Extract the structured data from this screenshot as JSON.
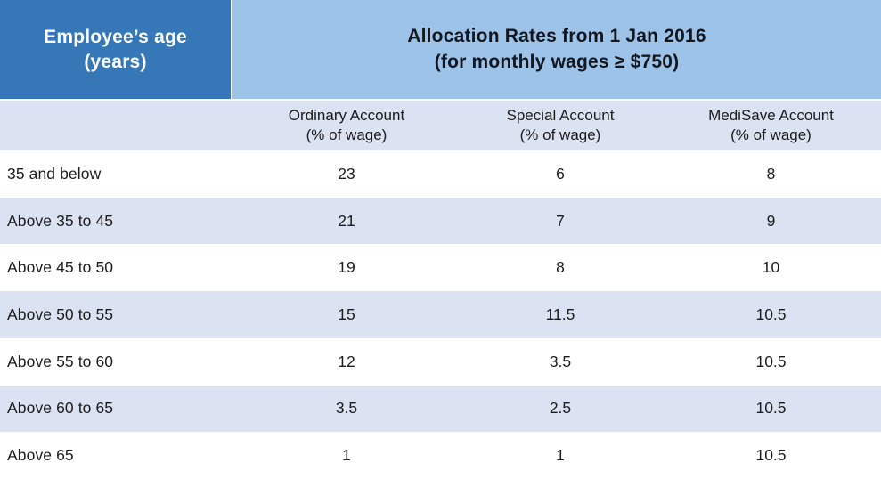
{
  "colors": {
    "header_dark_blue": "#3577b7",
    "header_light_blue": "#9dc4e8",
    "stripe_lavender": "#dbe2f2",
    "row_white": "#ffffff",
    "title_text": "#12161f",
    "header_text_on_dark": "#ffffff",
    "body_text": "#1c1c1c"
  },
  "table": {
    "corner": {
      "line1": "Employee’s age",
      "line2": "(years)"
    },
    "title": {
      "line1": "Allocation Rates from 1 Jan 2016",
      "line2": "(for monthly wages ≥ $750)"
    },
    "column_headers": [
      {
        "name": "Ordinary Account",
        "unit": "(% of wage)"
      },
      {
        "name": "Special Account",
        "unit": "(% of wage)"
      },
      {
        "name": "MediSave Account",
        "unit": "(% of wage)"
      }
    ],
    "rows": [
      {
        "age": "35 and below",
        "ordinary": "23",
        "special": "6",
        "medisave": "8"
      },
      {
        "age": "Above 35 to 45",
        "ordinary": "21",
        "special": "7",
        "medisave": "9"
      },
      {
        "age": "Above 45 to 50",
        "ordinary": "19",
        "special": "8",
        "medisave": "10"
      },
      {
        "age": "Above 50 to 55",
        "ordinary": "15",
        "special": "11.5",
        "medisave": "10.5"
      },
      {
        "age": "Above 55 to 60",
        "ordinary": "12",
        "special": "3.5",
        "medisave": "10.5"
      },
      {
        "age": "Above 60 to 65",
        "ordinary": "3.5",
        "special": "2.5",
        "medisave": "10.5"
      },
      {
        "age": "Above 65",
        "ordinary": "1",
        "special": "1",
        "medisave": "10.5"
      }
    ]
  },
  "chart_data": {
    "type": "table",
    "title": "Allocation Rates from 1 Jan 2016 (for monthly wages ≥ $750)",
    "row_header_label": "Employee's age (years)",
    "columns": [
      "Ordinary Account (% of wage)",
      "Special Account (% of wage)",
      "MediSave Account (% of wage)"
    ],
    "rows": [
      {
        "age": "35 and below",
        "values": [
          23,
          6,
          8
        ]
      },
      {
        "age": "Above 35 to 45",
        "values": [
          21,
          7,
          9
        ]
      },
      {
        "age": "Above 45 to 50",
        "values": [
          19,
          8,
          10
        ]
      },
      {
        "age": "Above 50 to 55",
        "values": [
          15,
          11.5,
          10.5
        ]
      },
      {
        "age": "Above 55 to 60",
        "values": [
          12,
          3.5,
          10.5
        ]
      },
      {
        "age": "Above 60 to 65",
        "values": [
          3.5,
          2.5,
          10.5
        ]
      },
      {
        "age": "Above 65",
        "values": [
          1,
          1,
          10.5
        ]
      }
    ],
    "layout": {
      "striped_rows": true,
      "stripe_color": "#dbe2f2",
      "grid": false
    }
  }
}
